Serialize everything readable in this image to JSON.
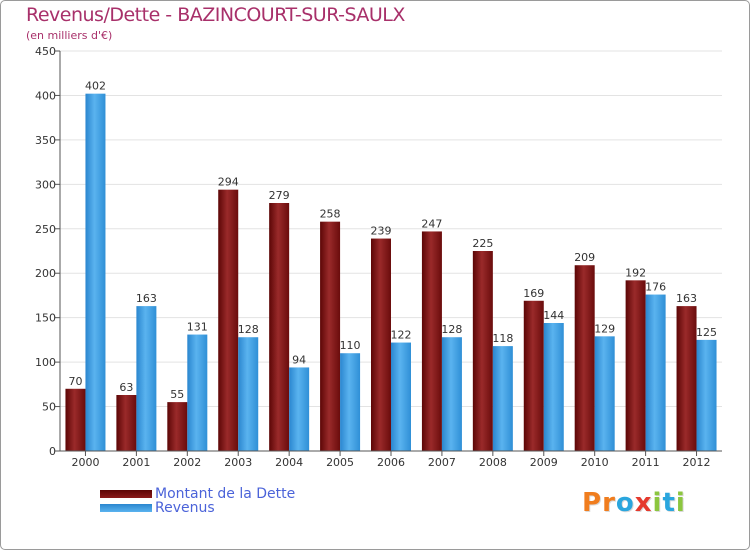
{
  "chart_data": {
    "type": "bar",
    "title": "Revenus/Dette - BAZINCOURT-SUR-SAULX",
    "subtitle": "(en milliers d'€)",
    "xlabel": "",
    "ylabel": "",
    "ylim": [
      0,
      450
    ],
    "yticks": [
      0,
      50,
      100,
      150,
      200,
      250,
      300,
      350,
      400,
      450
    ],
    "grid": true,
    "categories": [
      "2000",
      "2001",
      "2002",
      "2003",
      "2004",
      "2005",
      "2006",
      "2007",
      "2008",
      "2009",
      "2010",
      "2011",
      "2012"
    ],
    "series": [
      {
        "name": "Montant de la Dette",
        "color": "#8b1a1a",
        "values": [
          70,
          63,
          55,
          294,
          279,
          258,
          239,
          247,
          225,
          169,
          209,
          192,
          163
        ]
      },
      {
        "name": "Revenus",
        "color": "#3a9be0",
        "values": [
          402,
          163,
          131,
          128,
          94,
          110,
          122,
          128,
          118,
          144,
          129,
          176,
          125
        ]
      }
    ]
  },
  "legend": {
    "debt_label": "Montant de la Dette",
    "revenue_label": "Revenus"
  },
  "logo": {
    "text": "Proxiti",
    "letters": [
      {
        "char": "P",
        "color": "#f07d1e"
      },
      {
        "char": "r",
        "color": "#f07d1e"
      },
      {
        "char": "o",
        "color": "#2aa6de"
      },
      {
        "char": "x",
        "color": "#e53a2e"
      },
      {
        "char": "i",
        "color": "#8cc63f"
      },
      {
        "char": "t",
        "color": "#2aa6de"
      },
      {
        "char": "i",
        "color": "#8cc63f"
      }
    ]
  }
}
